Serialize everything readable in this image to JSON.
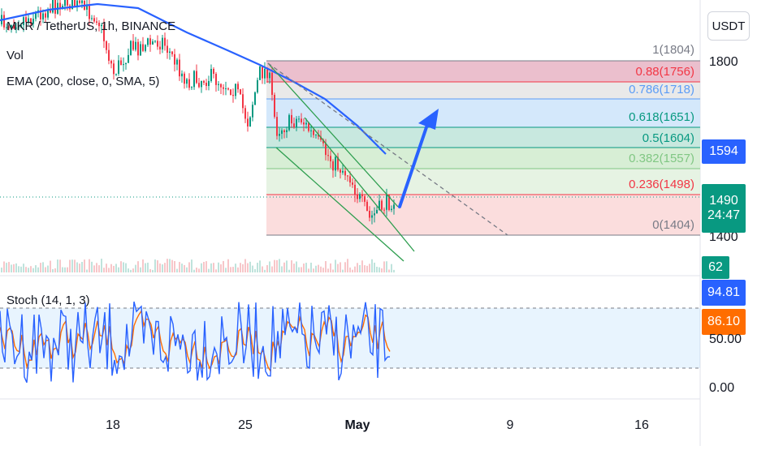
{
  "symbol": {
    "title": "MKR / TetherUS, 1h, BINANCE",
    "volume_label": "Vol",
    "ema_label": "EMA (200, close, 0, SMA, 5)"
  },
  "currency_button": "USDT",
  "price_axis": {
    "tick_1800": "1800",
    "tick_1400": "1400",
    "current_price": "1490",
    "countdown": "24:47",
    "ema_value": "1594",
    "volume_value": "62"
  },
  "stoch": {
    "label": "Stoch (14, 1, 3)",
    "k_value": "94.81",
    "d_value": "86.10",
    "tick_50": "50.00",
    "tick_0": "0.00"
  },
  "time_axis": [
    "18",
    "25",
    "May",
    "9",
    "16"
  ],
  "fib_levels": [
    {
      "label": "1(1804)",
      "color": "#787b86"
    },
    {
      "label": "0.88(1756)",
      "color": "#f23645"
    },
    {
      "label": "0.786(1718)",
      "color": "#5b9cf6"
    },
    {
      "label": "0.618(1651)",
      "color": "#089981"
    },
    {
      "label": "0.5(1604)",
      "color": "#089981"
    },
    {
      "label": "0.382(1557)",
      "color": "#81c784"
    },
    {
      "label": "0.236(1498)",
      "color": "#f23645"
    },
    {
      "label": "0(1404)",
      "color": "#787b86"
    }
  ],
  "colors": {
    "up": "#089981",
    "down": "#f23645",
    "ema": "#2962ff",
    "stoch_k": "#2962ff",
    "stoch_d": "#ff6d00",
    "arrow": "#2962ff"
  },
  "chart_data": {
    "type": "candlestick",
    "timeframe": "1h",
    "y_axis_ticks": [
      1400,
      1800
    ],
    "fib_retracement": {
      "high": 1804,
      "low": 1404,
      "levels": [
        [
          1,
          1804
        ],
        [
          0.88,
          1756
        ],
        [
          0.786,
          1718
        ],
        [
          0.618,
          1651
        ],
        [
          0.5,
          1604
        ],
        [
          0.382,
          1557
        ],
        [
          0.236,
          1498
        ],
        [
          0,
          1404
        ]
      ]
    },
    "ema_200_last": 1594,
    "last_price": 1490,
    "volume_last": 62,
    "stoch_k_last": 94.81,
    "stoch_d_last": 86.1,
    "stoch_levels": [
      20,
      80
    ],
    "stoch_y_ticks": [
      0,
      50
    ]
  }
}
